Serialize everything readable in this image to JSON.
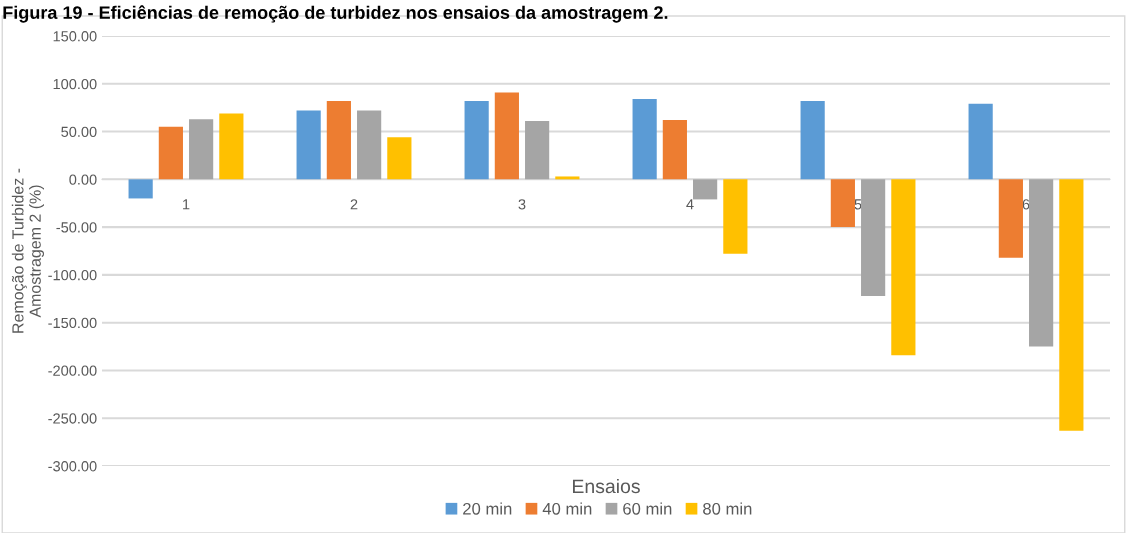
{
  "chart_data": {
    "type": "bar",
    "title": "Figura 19 - Eficiências de remoção de turbidez nos ensaios da amostragem 2.",
    "xlabel": "Ensaios",
    "ylabel": "Remoção de Turbidez -\nAmostragem 2 (%)",
    "categories": [
      "1",
      "2",
      "3",
      "4",
      "5",
      "6"
    ],
    "series": [
      {
        "name": "20 min",
        "color": "#5b9bd5",
        "values": [
          -20,
          72,
          82,
          84,
          82,
          79
        ]
      },
      {
        "name": "40 min",
        "color": "#ed7d31",
        "values": [
          55,
          82,
          91,
          62,
          -50,
          -82
        ]
      },
      {
        "name": "60 min",
        "color": "#a5a5a5",
        "values": [
          63,
          72,
          61,
          -21,
          -122,
          -175
        ]
      },
      {
        "name": "80 min",
        "color": "#ffc000",
        "values": [
          69,
          44,
          3,
          -78,
          -184,
          -263
        ]
      }
    ],
    "ylim": [
      -300,
      150
    ],
    "yticks": [
      {
        "value": -300,
        "label": "-300.00"
      },
      {
        "value": -250,
        "label": "-250.00"
      },
      {
        "value": -200,
        "label": "-200.00"
      },
      {
        "value": -150,
        "label": "-150.00"
      },
      {
        "value": -100,
        "label": "-100.00"
      },
      {
        "value": -50,
        "label": "-50.00"
      },
      {
        "value": 0,
        "label": "0.00"
      },
      {
        "value": 50,
        "label": "50.00"
      },
      {
        "value": 100,
        "label": "100.00"
      },
      {
        "value": 150,
        "label": "150.00"
      }
    ],
    "grid": "y",
    "legend": "bottom"
  }
}
